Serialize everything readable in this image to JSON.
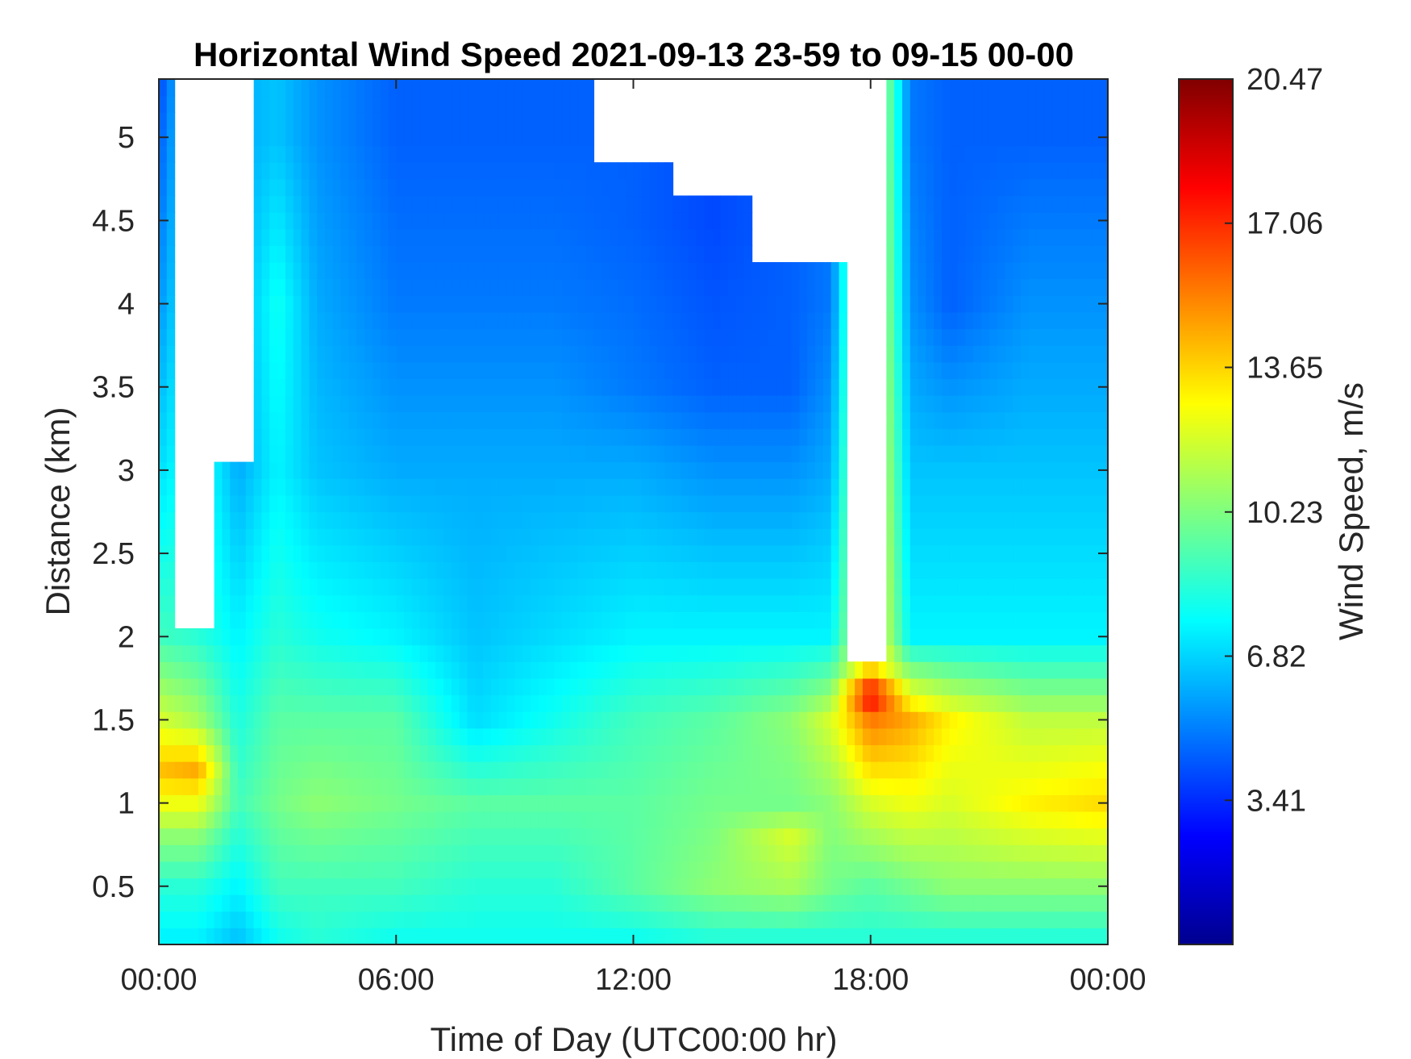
{
  "chart_data": {
    "type": "heatmap",
    "title": "Horizontal Wind Speed 2021-09-13 23-59 to 09-15 00-00",
    "xlabel": "Time of Day (UTC00:00 hr)",
    "ylabel": "Distance (km)",
    "x_ticks": [
      "00:00",
      "06:00",
      "12:00",
      "18:00",
      "00:00"
    ],
    "x_tick_hours": [
      0,
      6,
      12,
      18,
      24
    ],
    "xlim_hours": [
      0,
      24
    ],
    "y_ticks": [
      "0.5",
      "1",
      "1.5",
      "2",
      "2.5",
      "3",
      "3.5",
      "4",
      "4.5",
      "5"
    ],
    "y_tick_values": [
      0.5,
      1,
      1.5,
      2,
      2.5,
      3,
      3.5,
      4,
      4.5,
      5
    ],
    "ylim_km": [
      0.15,
      5.35
    ],
    "colorbar": {
      "label": "Wind Speed, m/s",
      "ticks": [
        "3.41",
        "6.82",
        "10.23",
        "13.65",
        "17.06",
        "20.47"
      ],
      "tick_values": [
        3.41,
        6.82,
        10.23,
        13.65,
        17.06,
        20.47
      ],
      "range": [
        0,
        20.47
      ],
      "colormap": "jet"
    },
    "grid": false,
    "colors": {
      "no_data": "#ffffff",
      "axes": "#262626"
    },
    "profiles": [
      {
        "hour": 0,
        "ceiling_km": 5.35,
        "speeds": [
          [
            0.2,
            7.5
          ],
          [
            0.5,
            8.5
          ],
          [
            0.8,
            10.5
          ],
          [
            1.0,
            12.5
          ],
          [
            1.2,
            14.0
          ],
          [
            1.5,
            12.0
          ],
          [
            2.0,
            9.0
          ],
          [
            3.0,
            7.0
          ],
          [
            4.0,
            5.5
          ],
          [
            5.3,
            4.0
          ]
        ]
      },
      {
        "hour": 1,
        "ceiling_km": 2.0,
        "speeds": [
          [
            0.2,
            7.5
          ],
          [
            0.5,
            8.5
          ],
          [
            0.8,
            10.5
          ],
          [
            1.0,
            12.5
          ],
          [
            1.2,
            14.5
          ],
          [
            1.5,
            11.0
          ],
          [
            2.0,
            8.5
          ]
        ]
      },
      {
        "hour": 2,
        "ceiling_km": 3.0,
        "speeds": [
          [
            0.2,
            6.5
          ],
          [
            0.5,
            7.5
          ],
          [
            1.0,
            9.0
          ],
          [
            2.0,
            7.5
          ],
          [
            3.0,
            6.0
          ]
        ]
      },
      {
        "hour": 3,
        "ceiling_km": 5.35,
        "speeds": [
          [
            0.2,
            8.0
          ],
          [
            0.5,
            9.0
          ],
          [
            1.0,
            10.0
          ],
          [
            1.5,
            9.5
          ],
          [
            2.0,
            8.5
          ],
          [
            3.0,
            7.5
          ],
          [
            4.0,
            8.0
          ],
          [
            5.0,
            6.5
          ]
        ]
      },
      {
        "hour": 4,
        "ceiling_km": 5.35,
        "speeds": [
          [
            0.2,
            8.5
          ],
          [
            0.5,
            9.0
          ],
          [
            1.0,
            10.5
          ],
          [
            1.5,
            9.5
          ],
          [
            2.0,
            8.0
          ],
          [
            3.0,
            6.5
          ],
          [
            4.0,
            6.0
          ],
          [
            5.0,
            5.5
          ]
        ]
      },
      {
        "hour": 6,
        "ceiling_km": 5.35,
        "speeds": [
          [
            0.2,
            8.0
          ],
          [
            0.5,
            9.0
          ],
          [
            1.0,
            10.0
          ],
          [
            1.5,
            9.5
          ],
          [
            2.0,
            7.5
          ],
          [
            3.0,
            6.0
          ],
          [
            4.0,
            5.0
          ],
          [
            5.0,
            4.5
          ]
        ]
      },
      {
        "hour": 8,
        "ceiling_km": 5.35,
        "speeds": [
          [
            0.2,
            8.0
          ],
          [
            0.5,
            8.5
          ],
          [
            1.0,
            9.5
          ],
          [
            1.5,
            7.0
          ],
          [
            2.0,
            6.5
          ],
          [
            3.0,
            6.0
          ],
          [
            4.0,
            5.0
          ],
          [
            5.0,
            4.5
          ]
        ]
      },
      {
        "hour": 10,
        "ceiling_km": 5.35,
        "speeds": [
          [
            0.2,
            8.0
          ],
          [
            0.5,
            8.5
          ],
          [
            1.0,
            9.5
          ],
          [
            1.5,
            8.0
          ],
          [
            2.0,
            7.0
          ],
          [
            3.0,
            6.0
          ],
          [
            4.0,
            5.0
          ],
          [
            5.0,
            4.5
          ]
        ]
      },
      {
        "hour": 12,
        "ceiling_km": 4.8,
        "speeds": [
          [
            0.2,
            8.0
          ],
          [
            0.5,
            9.5
          ],
          [
            1.0,
            9.5
          ],
          [
            1.5,
            9.0
          ],
          [
            2.0,
            7.5
          ],
          [
            3.0,
            6.0
          ],
          [
            3.5,
            5.0
          ],
          [
            4.5,
            4.5
          ]
        ]
      },
      {
        "hour": 14,
        "ceiling_km": 4.6,
        "speeds": [
          [
            0.2,
            8.5
          ],
          [
            0.5,
            10.5
          ],
          [
            1.0,
            10.0
          ],
          [
            1.5,
            9.5
          ],
          [
            2.0,
            7.5
          ],
          [
            3.0,
            5.5
          ],
          [
            3.5,
            4.5
          ],
          [
            4.5,
            4.0
          ]
        ]
      },
      {
        "hour": 16,
        "ceiling_km": 4.2,
        "speeds": [
          [
            0.2,
            8.5
          ],
          [
            0.5,
            11.0
          ],
          [
            0.8,
            12.0
          ],
          [
            1.0,
            10.0
          ],
          [
            1.5,
            10.5
          ],
          [
            2.0,
            7.5
          ],
          [
            3.0,
            5.5
          ],
          [
            3.5,
            4.5
          ],
          [
            4.0,
            4.5
          ]
        ]
      },
      {
        "hour": 17,
        "ceiling_km": 4.2,
        "speeds": [
          [
            0.2,
            8.5
          ],
          [
            0.5,
            10.0
          ],
          [
            1.0,
            10.5
          ],
          [
            1.5,
            12.0
          ],
          [
            2.0,
            7.5
          ],
          [
            3.0,
            6.0
          ],
          [
            4.0,
            5.0
          ]
        ]
      },
      {
        "hour": 18,
        "ceiling_km": 1.8,
        "speeds": [
          [
            0.2,
            8.5
          ],
          [
            0.5,
            9.5
          ],
          [
            1.0,
            12.0
          ],
          [
            1.5,
            15.5
          ],
          [
            1.65,
            18.5
          ],
          [
            1.8,
            14.0
          ]
        ]
      },
      {
        "hour": 19,
        "ceiling_km": 5.35,
        "speeds": [
          [
            0.2,
            8.5
          ],
          [
            0.5,
            10.0
          ],
          [
            1.0,
            12.5
          ],
          [
            1.5,
            14.5
          ],
          [
            2.0,
            7.5
          ],
          [
            3.0,
            6.5
          ],
          [
            4.0,
            5.5
          ],
          [
            5.0,
            5.0
          ]
        ]
      },
      {
        "hour": 20,
        "ceiling_km": 5.35,
        "speeds": [
          [
            0.2,
            8.5
          ],
          [
            0.5,
            10.5
          ],
          [
            1.0,
            12.0
          ],
          [
            1.5,
            13.0
          ],
          [
            2.0,
            7.5
          ],
          [
            3.0,
            6.5
          ],
          [
            4.0,
            4.5
          ],
          [
            5.0,
            4.5
          ]
        ]
      },
      {
        "hour": 22,
        "ceiling_km": 5.35,
        "speeds": [
          [
            0.2,
            8.5
          ],
          [
            0.5,
            10.5
          ],
          [
            1.0,
            13.0
          ],
          [
            1.5,
            11.5
          ],
          [
            2.0,
            7.5
          ],
          [
            3.0,
            6.5
          ],
          [
            4.0,
            5.5
          ],
          [
            5.0,
            4.5
          ]
        ]
      },
      {
        "hour": 24,
        "ceiling_km": 5.35,
        "speeds": [
          [
            0.2,
            8.5
          ],
          [
            0.5,
            10.5
          ],
          [
            1.0,
            13.5
          ],
          [
            1.5,
            11.5
          ],
          [
            2.0,
            7.5
          ],
          [
            3.0,
            6.5
          ],
          [
            4.0,
            5.5
          ],
          [
            5.0,
            4.5
          ]
        ]
      }
    ]
  }
}
